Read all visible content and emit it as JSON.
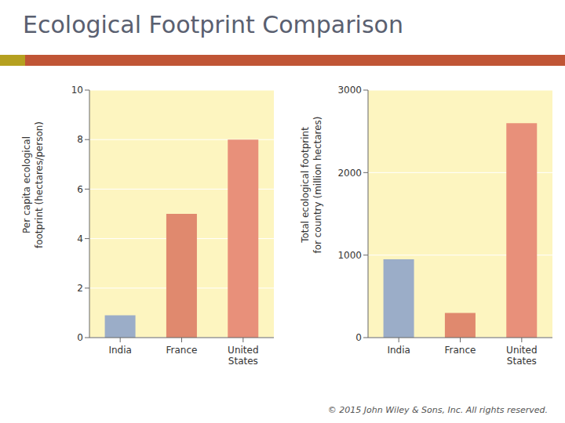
{
  "title": "Ecological Footprint Comparison",
  "annotations": [
    "© 2015 John Wiley & Sons, Inc. All rights reserved."
  ],
  "chart_data": [
    {
      "type": "bar",
      "categories": [
        "India",
        "France",
        "United\nStates"
      ],
      "values": [
        0.9,
        5.0,
        8.0
      ],
      "colors": [
        "#9badc8",
        "#e0896e",
        "#e8907a"
      ],
      "ylabel": "Per capita ecological\nfootprint (hectares/person)",
      "ylim": [
        0,
        10
      ],
      "yticks": [
        0,
        2,
        4,
        6,
        8,
        10
      ],
      "grid": true
    },
    {
      "type": "bar",
      "categories": [
        "India",
        "France",
        "United\nStates"
      ],
      "values": [
        950,
        300,
        2600
      ],
      "colors": [
        "#9badc8",
        "#e0896e",
        "#e8907a"
      ],
      "ylabel": "Total ecological footprint\nfor country (million hectares)",
      "ylim": [
        0,
        3000
      ],
      "yticks": [
        0,
        1000,
        2000,
        3000
      ],
      "grid": true
    }
  ]
}
